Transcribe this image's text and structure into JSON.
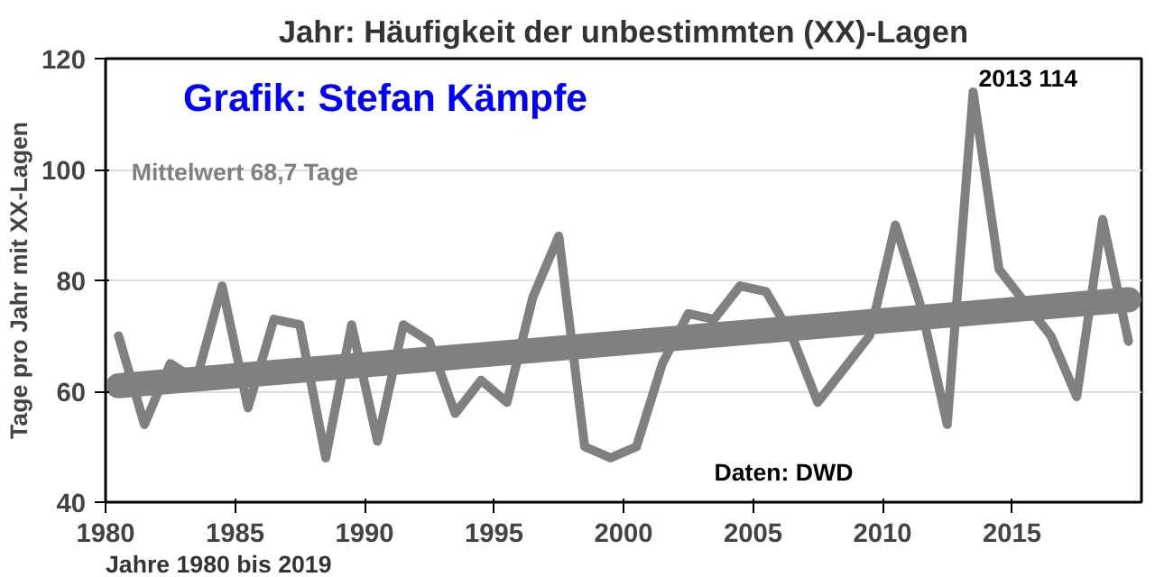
{
  "chart_data": {
    "type": "line",
    "title": "Jahr: Häufigkeit der unbestimmten (XX)-Lagen",
    "xlabel": "Jahre 1980 bis 2019",
    "ylabel": "Tage pro Jahr mit XX-Lagen",
    "x": [
      1980.5,
      1981.5,
      1982.5,
      1983.5,
      1984.5,
      1985.5,
      1986.5,
      1987.5,
      1988.5,
      1989.5,
      1990.5,
      1991.5,
      1992.5,
      1993.5,
      1994.5,
      1995.5,
      1996.5,
      1997.5,
      1998.5,
      1999.5,
      2000.5,
      2001.5,
      2002.5,
      2003.5,
      2004.5,
      2005.5,
      2006.5,
      2007.5,
      2008.5,
      2009.5,
      2010.5,
      2011.5,
      2012.5,
      2013.5,
      2014.5,
      2015.5,
      2016.5,
      2017.5,
      2018.5,
      2019.5
    ],
    "series": [
      {
        "color": "#808080",
        "values": [
          70,
          54,
          65,
          62,
          79,
          57,
          73,
          72,
          48,
          72,
          51,
          72,
          69,
          56,
          62,
          58,
          77,
          88,
          50,
          48,
          50,
          65,
          74,
          73,
          79,
          78,
          70,
          58,
          64,
          70,
          90,
          75,
          54,
          114,
          82,
          76,
          70,
          59,
          91,
          69
        ]
      },
      {
        "type": "line",
        "color": "#808080",
        "x": [
          1980.5,
          2019.5
        ],
        "values": [
          61,
          76.5
        ]
      }
    ],
    "xlim": [
      1980,
      2020
    ],
    "xticks": [
      1980,
      1985,
      1990,
      1995,
      2000,
      2005,
      2010,
      2015
    ],
    "ylim": [
      40,
      120
    ],
    "yticks": [
      40,
      60,
      80,
      100,
      120
    ],
    "grid": "y",
    "annotations": [
      "Grafik: Stefan Kämpfe",
      "Mittelwert 68,7 Tage",
      {
        "text": "2013 114",
        "x": 2013.5,
        "y": 114
      },
      "Daten: DWD"
    ]
  }
}
